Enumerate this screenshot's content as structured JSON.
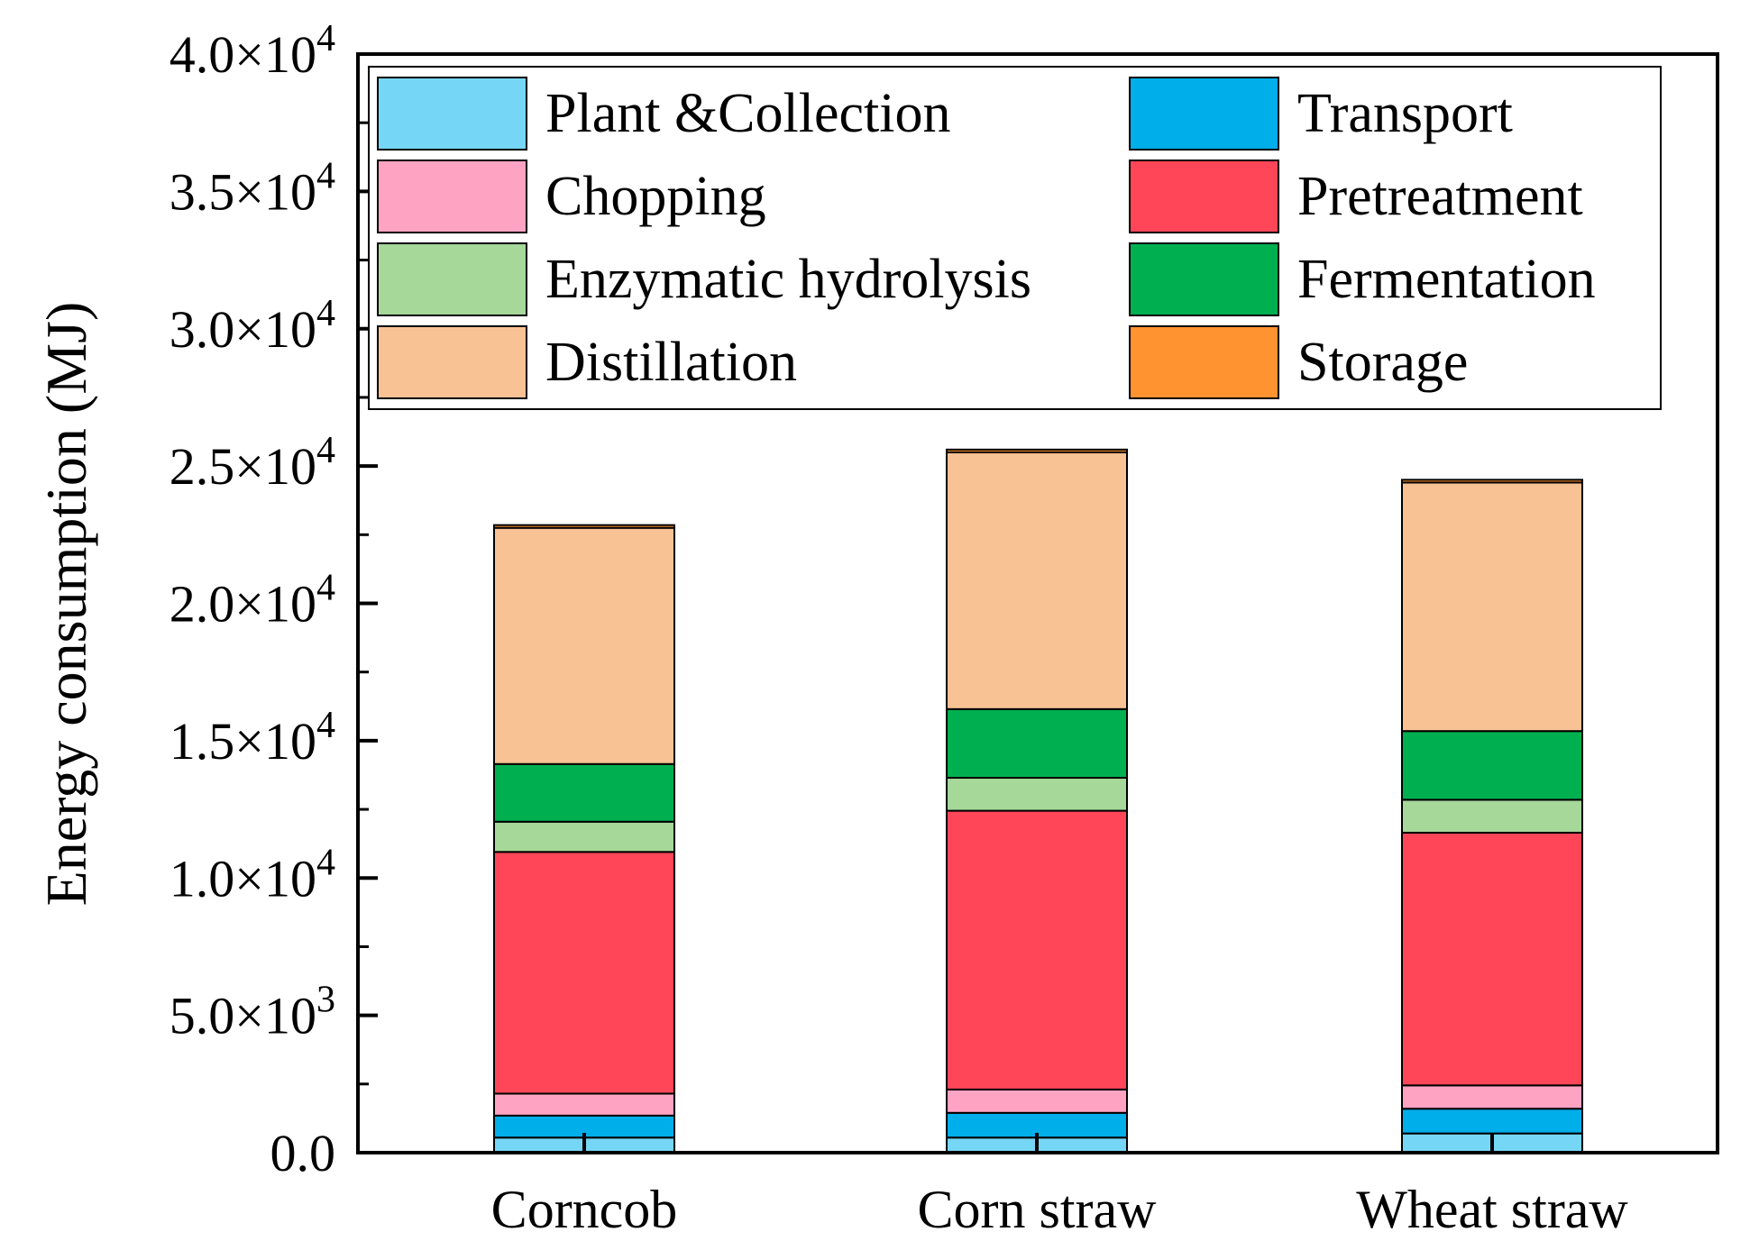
{
  "chart_data": {
    "type": "bar",
    "stacked": true,
    "title": "",
    "xlabel": "",
    "ylabel": "Energy consumption (MJ)",
    "ylim": [
      0,
      40000
    ],
    "yticks": [
      {
        "value": 0,
        "mantissa": "0.0",
        "exponent": ""
      },
      {
        "value": 5000,
        "mantissa": "5.0×10",
        "exponent": "3"
      },
      {
        "value": 10000,
        "mantissa": "1.0×10",
        "exponent": "4"
      },
      {
        "value": 15000,
        "mantissa": "1.5×10",
        "exponent": "4"
      },
      {
        "value": 20000,
        "mantissa": "2.0×10",
        "exponent": "4"
      },
      {
        "value": 25000,
        "mantissa": "2.5×10",
        "exponent": "4"
      },
      {
        "value": 30000,
        "mantissa": "3.0×10",
        "exponent": "4"
      },
      {
        "value": 35000,
        "mantissa": "3.5×10",
        "exponent": "4"
      },
      {
        "value": 40000,
        "mantissa": "4.0×10",
        "exponent": "4"
      }
    ],
    "categories": [
      "Corncob",
      "Corn straw",
      "Wheat straw"
    ],
    "legend_position": "top",
    "legend_columns": 2,
    "series": [
      {
        "name": "Plant &Collection",
        "color": "#75D7F5",
        "values": [
          550,
          550,
          700
        ]
      },
      {
        "name": "Transport",
        "color": "#00AEEA",
        "values": [
          800,
          900,
          900
        ]
      },
      {
        "name": "Chopping",
        "color": "#FFA3C3",
        "values": [
          800,
          850,
          850
        ]
      },
      {
        "name": "Pretreatment",
        "color": "#FF4658",
        "values": [
          8800,
          10150,
          9200
        ]
      },
      {
        "name": "Enzymatic hydrolysis",
        "color": "#A6D89A",
        "values": [
          1100,
          1200,
          1200
        ]
      },
      {
        "name": "Fermentation",
        "color": "#00B050",
        "values": [
          2100,
          2500,
          2500
        ]
      },
      {
        "name": "Distillation",
        "color": "#F9C295",
        "values": [
          8600,
          9350,
          9050
        ]
      },
      {
        "name": "Storage",
        "color": "#FF9330",
        "values": [
          100,
          100,
          100
        ]
      }
    ]
  }
}
